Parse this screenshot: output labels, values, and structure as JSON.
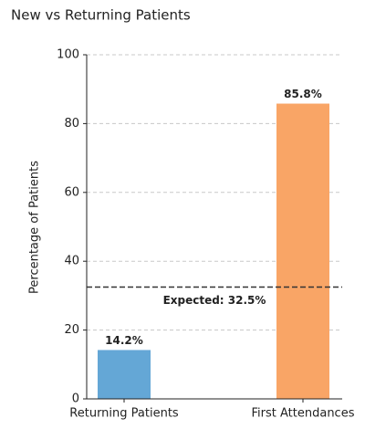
{
  "chart_data": {
    "type": "bar",
    "title": "New vs Returning Patients",
    "y_label": "Percentage of Patients",
    "categories": [
      "Returning Patients",
      "First Attendances"
    ],
    "values": [
      14.2,
      85.8
    ],
    "value_labels": [
      "14.2%",
      "85.8%"
    ],
    "colors": [
      "#64a7d6",
      "#f9a566"
    ],
    "ylim": [
      0,
      100
    ],
    "yticks": [
      0,
      20,
      40,
      60,
      80,
      100
    ],
    "grid": true,
    "reference_line": {
      "value": 32.5,
      "label": "Expected: 32.5%"
    }
  }
}
